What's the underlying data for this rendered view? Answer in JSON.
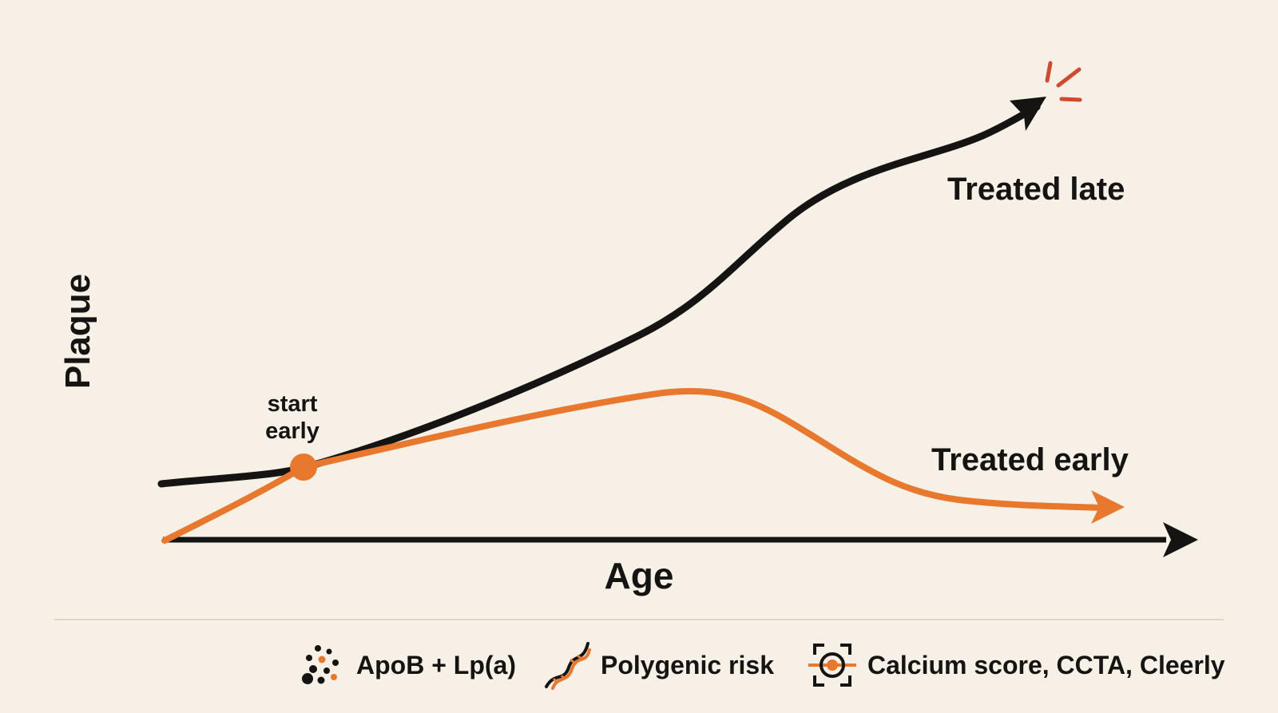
{
  "axes": {
    "x_label": "Age",
    "y_label": "Plaque"
  },
  "curves": {
    "late_label": "Treated late",
    "early_label": "Treated early"
  },
  "marker": {
    "line1": "start",
    "line2": "early"
  },
  "legend": {
    "items": [
      {
        "icon": "particles-icon",
        "label": "ApoB + Lp(a)"
      },
      {
        "icon": "dna-icon",
        "label": "Polygenic risk"
      },
      {
        "icon": "scan-target-icon",
        "label": "Calcium score, CCTA, Cleerly"
      }
    ]
  },
  "colors": {
    "background": "#f6f0e6",
    "late_curve": "#161412",
    "early_curve": "#e8782e",
    "rupture": "#d04a32"
  },
  "icons": {
    "rupture": "rupture-burst-icon"
  }
}
